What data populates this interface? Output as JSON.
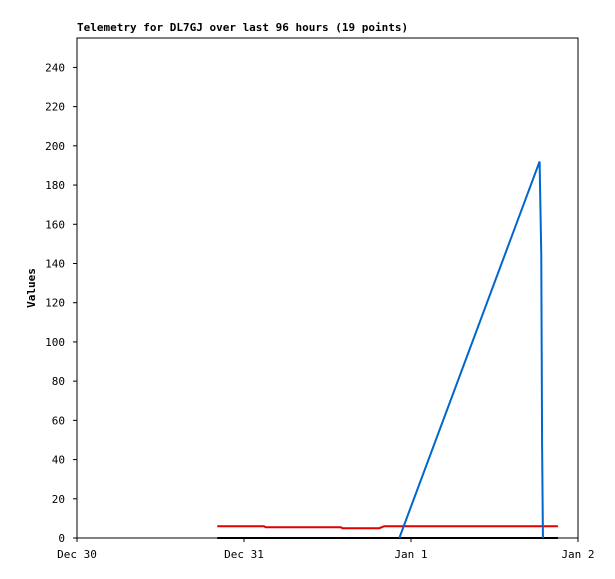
{
  "chart_data": {
    "type": "line",
    "title": "Telemetry for DL7GJ over last 96 hours (19 points)",
    "y_label": "Values",
    "xlim": [
      0,
      3
    ],
    "xticks": [
      {
        "value": 0,
        "label": "Dec 30"
      },
      {
        "value": 1,
        "label": "Dec 31"
      },
      {
        "value": 2,
        "label": "Jan 1"
      },
      {
        "value": 3,
        "label": "Jan 2"
      }
    ],
    "ylim": [
      0,
      255
    ],
    "yticks": [
      0,
      20,
      40,
      60,
      80,
      100,
      120,
      140,
      160,
      180,
      200,
      220,
      240
    ],
    "grid": false,
    "series": [
      {
        "color": "#e00000",
        "x": [
          0.84,
          1.12,
          1.13,
          1.58,
          1.59,
          1.81,
          1.84,
          2.88
        ],
        "values": [
          6,
          6,
          5.5,
          5.5,
          5,
          5,
          6,
          6
        ]
      },
      {
        "color": "#000000",
        "x": [
          0.84,
          2.88
        ],
        "values": [
          0,
          0
        ]
      },
      {
        "color": "#0066cc",
        "x": [
          1.93,
          2.77,
          2.78,
          2.785,
          2.79
        ],
        "values": [
          0,
          192,
          145,
          48,
          0
        ]
      }
    ]
  }
}
